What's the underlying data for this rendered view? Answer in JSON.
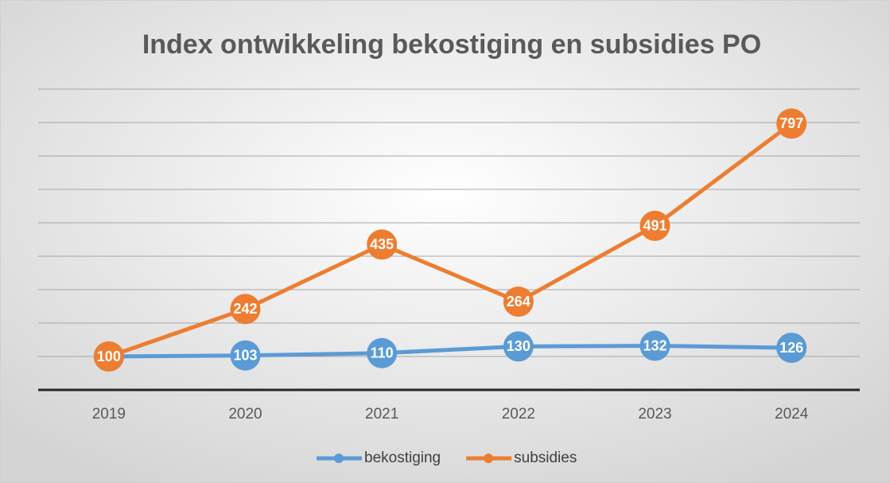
{
  "chart_data": {
    "type": "line",
    "title": "Index ontwikkeling bekostiging en subsidies PO",
    "categories": [
      "2019",
      "2020",
      "2021",
      "2022",
      "2023",
      "2024"
    ],
    "series": [
      {
        "name": "bekostiging",
        "color": "#5b9bd5",
        "values": [
          100,
          103,
          110,
          130,
          132,
          126
        ]
      },
      {
        "name": "subsidies",
        "color": "#ed7d31",
        "values": [
          100,
          242,
          435,
          264,
          491,
          797
        ]
      }
    ],
    "ylim": [
      0,
      900
    ],
    "yticks": [
      0,
      100,
      200,
      300,
      400,
      500,
      600,
      700,
      800,
      900
    ],
    "grid": true,
    "legend": "bottom"
  }
}
